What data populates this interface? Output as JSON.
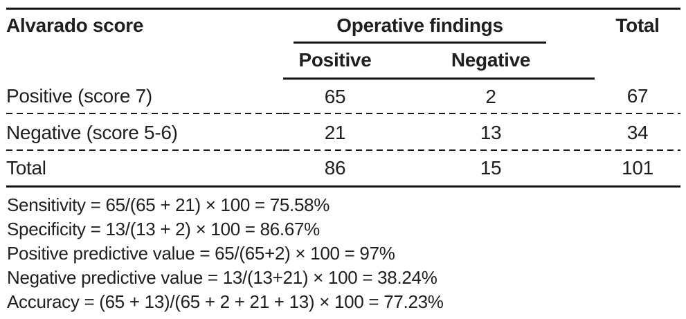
{
  "table": {
    "header": {
      "row_label_col": "Alvarado score",
      "group_label": "Operative findings",
      "sub_positive": "Positive",
      "sub_negative": "Negative",
      "total_label": "Total"
    },
    "rows": [
      {
        "label": "Positive (score 7)",
        "positive": "65",
        "negative": "2",
        "total": "67"
      },
      {
        "label": "Negative (score 5-6)",
        "positive": "21",
        "negative": "13",
        "total": "34"
      },
      {
        "label": "Total",
        "positive": "86",
        "negative": "15",
        "total": "101"
      }
    ],
    "footnotes": [
      "Sensitivity = 65/(65 + 21) × 100 = 75.58%",
      "Specificity = 13/(13 + 2) × 100 = 86.67%",
      "Positive predictive value = 65/(65+2) × 100 = 97%",
      "Negative predictive value = 13/(13+21) × 100 = 38.24%",
      "Accuracy = (65 + 13)/(65 + 2 + 21 + 13) × 100 = 77.23%"
    ]
  },
  "colors": {
    "text": "#211e1f",
    "rule": "#181516",
    "background": "#ffffff"
  }
}
